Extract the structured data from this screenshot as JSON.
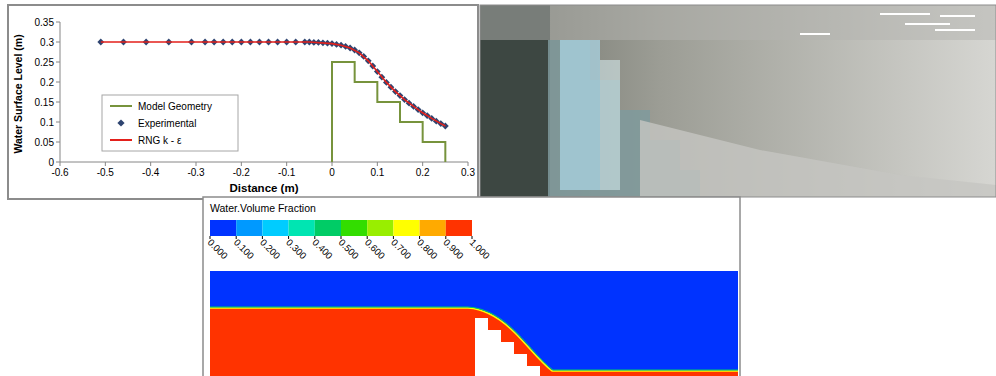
{
  "chart_data": [
    {
      "type": "line",
      "x_label": "Distance (m)",
      "y_label": "Water Surface Level (m)",
      "xlim": [
        -0.6,
        0.3
      ],
      "xticks": [
        -0.6,
        -0.5,
        -0.4,
        -0.3,
        -0.2,
        -0.1,
        0,
        0.1,
        0.2,
        0.3
      ],
      "ylim": [
        0,
        0.35
      ],
      "yticks": [
        0,
        0.05,
        0.1,
        0.15,
        0.2,
        0.25,
        0.3,
        0.35
      ],
      "grid": false,
      "legend": "left",
      "series": [
        {
          "name": "Model Geometry",
          "type": "line",
          "color": "#77933c",
          "marker": "none",
          "line_style": "solid",
          "x": [
            0,
            0,
            0.05,
            0.05,
            0.1,
            0.1,
            0.15,
            0.15,
            0.2,
            0.2,
            0.25,
            0.25
          ],
          "values": [
            0,
            0.25,
            0.25,
            0.2,
            0.2,
            0.15,
            0.15,
            0.1,
            0.1,
            0.05,
            0.05,
            0
          ]
        },
        {
          "name": "Experimental",
          "type": "scatter",
          "color": "#2e4470",
          "marker": "diamond",
          "line_style": "none",
          "x": [
            -0.51,
            -0.46,
            -0.41,
            -0.36,
            -0.31,
            -0.28,
            -0.26,
            -0.24,
            -0.22,
            -0.2,
            -0.18,
            -0.16,
            -0.14,
            -0.12,
            -0.1,
            -0.08,
            -0.06,
            -0.05,
            -0.04,
            -0.03,
            -0.02,
            -0.01,
            0,
            0.01,
            0.02,
            0.03,
            0.04,
            0.05,
            0.06,
            0.07,
            0.08,
            0.09,
            0.1,
            0.11,
            0.12,
            0.13,
            0.14,
            0.15,
            0.16,
            0.17,
            0.18,
            0.19,
            0.2,
            0.21,
            0.22,
            0.23,
            0.24,
            0.25
          ],
          "values": [
            0.3,
            0.3,
            0.3,
            0.3,
            0.3,
            0.3,
            0.3,
            0.3,
            0.3,
            0.3,
            0.3,
            0.3,
            0.3,
            0.3,
            0.3,
            0.3,
            0.3,
            0.3,
            0.299,
            0.299,
            0.298,
            0.297,
            0.296,
            0.294,
            0.292,
            0.289,
            0.285,
            0.28,
            0.273,
            0.264,
            0.253,
            0.24,
            0.226,
            0.212,
            0.199,
            0.187,
            0.176,
            0.166,
            0.156,
            0.147,
            0.139,
            0.131,
            0.123,
            0.116,
            0.109,
            0.102,
            0.096,
            0.09
          ]
        },
        {
          "name": "RNG k - ε",
          "type": "line",
          "color": "#e3201b",
          "marker": "none",
          "line_style": "solid",
          "x": [
            -0.51,
            -0.4,
            -0.3,
            -0.2,
            -0.1,
            -0.05,
            0,
            0.02,
            0.04,
            0.06,
            0.08,
            0.1,
            0.12,
            0.14,
            0.16,
            0.18,
            0.2,
            0.22,
            0.24,
            0.25
          ],
          "values": [
            0.3,
            0.3,
            0.3,
            0.3,
            0.3,
            0.3,
            0.296,
            0.292,
            0.285,
            0.273,
            0.253,
            0.226,
            0.199,
            0.176,
            0.156,
            0.139,
            0.123,
            0.109,
            0.096,
            0.09
          ]
        }
      ]
    },
    {
      "type": "contour",
      "title": "Water.Volume Fraction",
      "colorbar": {
        "range": [
          0,
          1
        ],
        "ticks": [
          {
            "value": 0,
            "label": "0.000"
          },
          {
            "value": 0.1,
            "label": "0.100"
          },
          {
            "value": 0.2,
            "label": "0.200"
          },
          {
            "value": 0.3,
            "label": "0.300"
          },
          {
            "value": 0.4,
            "label": "0.400"
          },
          {
            "value": 0.5,
            "label": "0.500"
          },
          {
            "value": 0.6,
            "label": "0.600"
          },
          {
            "value": 0.7,
            "label": "0.700"
          },
          {
            "value": 0.8,
            "label": "0.800"
          },
          {
            "value": 0.9,
            "label": "0.900"
          },
          {
            "value": 1,
            "label": "1.000"
          }
        ],
        "colors": [
          "#0033ff",
          "#0099ff",
          "#00ccff",
          "#00e5b2",
          "#00cc66",
          "#33dd00",
          "#99ee00",
          "#ffff00",
          "#ffaa00",
          "#ff3300"
        ]
      }
    }
  ]
}
